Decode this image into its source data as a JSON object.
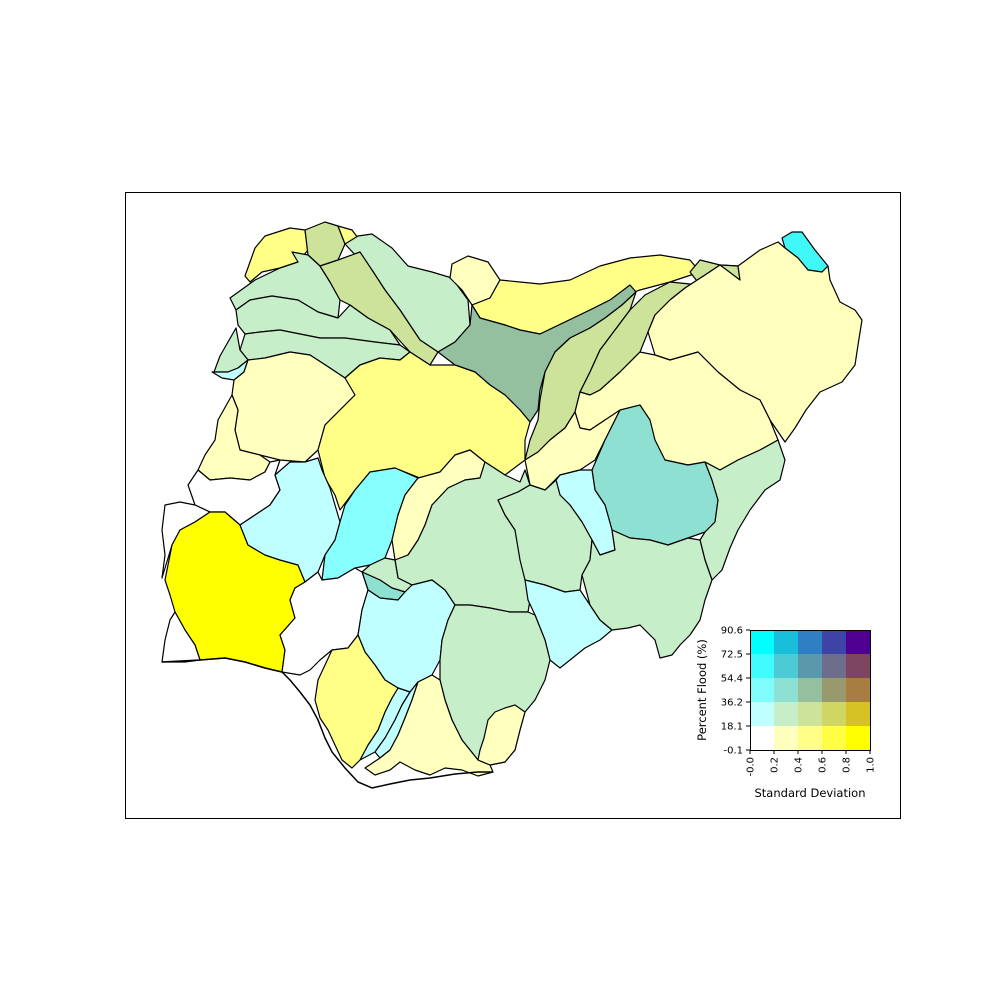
{
  "figure": {
    "map": {
      "regions": [
        {
          "id": "r01",
          "color": "#ffff88"
        },
        {
          "id": "r02",
          "color": "#cce399"
        },
        {
          "id": "r03",
          "color": "#ffff88"
        },
        {
          "id": "r04",
          "color": "#c5eec9"
        },
        {
          "id": "r05",
          "color": "#ffffbe"
        },
        {
          "id": "r06",
          "color": "#ffff88"
        },
        {
          "id": "r07",
          "color": "#cce399"
        },
        {
          "id": "r08",
          "color": "#40f8f8"
        },
        {
          "id": "r09",
          "color": "#c5eec9"
        },
        {
          "id": "r10",
          "color": "#cce399"
        },
        {
          "id": "r11",
          "color": "#c5eec9"
        },
        {
          "id": "r12",
          "color": "#c5eec9"
        },
        {
          "id": "r13",
          "color": "#c5eec9"
        },
        {
          "id": "r14",
          "color": "#94c0a0"
        },
        {
          "id": "r15",
          "color": "#cce399"
        },
        {
          "id": "r16",
          "color": "#cce399"
        },
        {
          "id": "r17",
          "color": "#ffffbe"
        },
        {
          "id": "r18",
          "color": "#c0ffff"
        },
        {
          "id": "r19",
          "color": "#ffffbe"
        },
        {
          "id": "r20",
          "color": "#ffff88"
        },
        {
          "id": "r21",
          "color": "#ffffbe"
        },
        {
          "id": "r22",
          "color": "#ffffbe"
        },
        {
          "id": "r23",
          "color": "#ffffbe"
        },
        {
          "id": "r24",
          "color": "#8ee0d2"
        },
        {
          "id": "r25",
          "color": "#c0ffff"
        },
        {
          "id": "r26",
          "color": "#c5eec9"
        },
        {
          "id": "r27",
          "color": "#ffffff"
        },
        {
          "id": "r28",
          "color": "#ffffff"
        },
        {
          "id": "r29",
          "color": "#ffff00"
        },
        {
          "id": "r30",
          "color": "#c0ffff"
        },
        {
          "id": "r31",
          "color": "#88ffff"
        },
        {
          "id": "r32",
          "color": "#ffffbe"
        },
        {
          "id": "r33",
          "color": "#c5eec9"
        },
        {
          "id": "r34",
          "color": "#c5eec9"
        },
        {
          "id": "r35",
          "color": "#c0ffff"
        },
        {
          "id": "r36",
          "color": "#c5eec9"
        },
        {
          "id": "r37",
          "color": "#c5eec9"
        },
        {
          "id": "r38",
          "color": "#8ee0d2"
        },
        {
          "id": "r39",
          "color": "#ffffff"
        },
        {
          "id": "r40",
          "color": "#c0ffff"
        },
        {
          "id": "r41",
          "color": "#c5eec9"
        },
        {
          "id": "r42",
          "color": "#c0ffff"
        },
        {
          "id": "r43",
          "color": "#ffffff"
        },
        {
          "id": "r44",
          "color": "#ffff88"
        },
        {
          "id": "r45",
          "color": "#c0ffff"
        },
        {
          "id": "r46",
          "color": "#ffffbe"
        },
        {
          "id": "r47",
          "color": "#ffffbe"
        }
      ]
    },
    "legend": {
      "ylabel": "Percent Flood (%)",
      "xlabel": "Standard Deviation",
      "yticks": [
        "90.6",
        "72.5",
        "54.4",
        "36.2",
        "18.1",
        "-0.1"
      ],
      "xticks": [
        "-0.0",
        "0.2",
        "0.4",
        "0.6",
        "0.8",
        "1.0"
      ],
      "rows_top_to_bottom": [
        [
          "#00ffff",
          "#18beda",
          "#2e7fc4",
          "#3e44a6",
          "#4f0090"
        ],
        [
          "#40fcfc",
          "#4ccbd4",
          "#5a98ac",
          "#6c6e8c",
          "#7d4560"
        ],
        [
          "#80fcfc",
          "#8ee0d2",
          "#94c0a0",
          "#989a6e",
          "#a87e40"
        ],
        [
          "#c0ffff",
          "#c5eec9",
          "#cce399",
          "#d0d662",
          "#d7c224"
        ],
        [
          "#ffffff",
          "#ffffbe",
          "#ffff88",
          "#ffff44",
          "#ffff00"
        ]
      ]
    }
  }
}
